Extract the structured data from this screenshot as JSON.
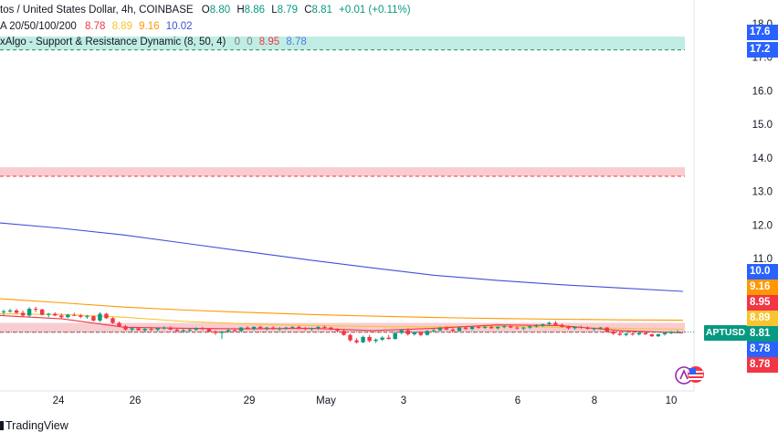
{
  "legend": {
    "symbol_line": "tos / United States Dollar, 4h, COINBASE",
    "ohlc": [
      {
        "label": "O",
        "value": "8.80"
      },
      {
        "label": "H",
        "value": "8.86"
      },
      {
        "label": "L",
        "value": "8.79"
      },
      {
        "label": "C",
        "value": "8.81"
      }
    ],
    "change": "+0.01 (+0.11%)",
    "ma_label": "A 20/50/100/200",
    "ma_values": [
      {
        "value": "8.78",
        "color": "#f23645"
      },
      {
        "value": "8.89",
        "color": "#f7c530"
      },
      {
        "value": "9.16",
        "color": "#ff9800"
      },
      {
        "value": "10.02",
        "color": "#3f51d8"
      }
    ],
    "sr_label": "xAlgo - Support & Resistance Dynamic (8, 50, 4)",
    "sr_zeros": [
      "0",
      "0"
    ],
    "sr_values": [
      {
        "value": "8.95",
        "color": "#f23645"
      },
      {
        "value": "8.78",
        "color": "#4b7bec"
      }
    ]
  },
  "symbol_tag": "APTUSD",
  "price_tags": [
    {
      "value": "17.6",
      "color": "#2962ff",
      "y_value": 17.62
    },
    {
      "value": "17.2",
      "color": "#2962ff",
      "y_value": 17.22
    },
    {
      "value": "10.0",
      "color": "#2962ff",
      "y_value": 10.02
    },
    {
      "value": "9.16",
      "color": "#ff9800",
      "y_value": 9.16
    },
    {
      "value": "8.95",
      "color": "#f23645",
      "y_value": 8.95
    },
    {
      "value": "8.89",
      "color": "#f7c530",
      "y_value": 8.89
    },
    {
      "value": "8.81",
      "color": "#089981",
      "y_value": 8.81
    },
    {
      "value": "8.78",
      "color": "#2962ff",
      "y_value": 8.78
    },
    {
      "value": "8.78",
      "color": "#f23645",
      "y_value": 8.78
    }
  ],
  "footer": {
    "brand": "TradingView"
  },
  "icons": {
    "brand_mark": "tradingview-logo-icon",
    "replay": "replay-flag-icon"
  },
  "chart_data": {
    "type": "candlestick",
    "y_axis": {
      "ticks": [
        "18.0",
        "17.0",
        "16.0",
        "15.0",
        "14.0",
        "13.0",
        "12.0",
        "11.0"
      ],
      "tick_values": [
        18,
        17,
        16,
        15,
        14,
        13,
        12,
        11
      ]
    },
    "x_axis": {
      "ticks": [
        "24",
        "26",
        "29",
        "May",
        "3",
        "6",
        "8",
        "10"
      ]
    },
    "zones": [
      {
        "type": "resistance",
        "low": 17.22,
        "high": 17.62,
        "color": "#b9ebe0"
      },
      {
        "type": "resistance",
        "low": 13.45,
        "high": 13.72,
        "color": "#f8c7cb"
      },
      {
        "type": "support",
        "low": 8.8,
        "high": 9.08,
        "color": "#f8c7cb"
      }
    ],
    "ma_series": [
      {
        "name": "MA 200",
        "color": "#3f51d8",
        "values": [
          12.06,
          11.9,
          11.7,
          11.45,
          11.2,
          10.95,
          10.72,
          10.5,
          10.35,
          10.22,
          10.12,
          10.02
        ]
      },
      {
        "name": "MA 100",
        "color": "#ff9800",
        "values": [
          9.8,
          9.68,
          9.55,
          9.46,
          9.39,
          9.33,
          9.28,
          9.24,
          9.21,
          9.19,
          9.17,
          9.16
        ]
      },
      {
        "name": "MA 50",
        "color": "#f7c530",
        "values": [
          9.35,
          9.33,
          9.25,
          9.12,
          9.05,
          9.0,
          8.97,
          8.96,
          8.98,
          8.95,
          8.92,
          8.89
        ]
      },
      {
        "name": "MA 20",
        "color": "#f23645",
        "values": [
          9.3,
          9.2,
          8.95,
          8.92,
          8.9,
          8.92,
          8.85,
          8.92,
          9.02,
          9.0,
          8.85,
          8.78
        ]
      }
    ],
    "candles": [
      [
        9.4,
        9.48,
        9.3,
        9.42
      ],
      [
        9.42,
        9.5,
        9.38,
        9.45
      ],
      [
        9.45,
        9.5,
        9.35,
        9.38
      ],
      [
        9.38,
        9.45,
        9.25,
        9.3
      ],
      [
        9.3,
        9.55,
        9.25,
        9.5
      ],
      [
        9.5,
        9.56,
        9.4,
        9.48
      ],
      [
        9.48,
        9.5,
        9.3,
        9.32
      ],
      [
        9.32,
        9.38,
        9.25,
        9.35
      ],
      [
        9.35,
        9.4,
        9.28,
        9.3
      ],
      [
        9.3,
        9.36,
        9.2,
        9.25
      ],
      [
        9.25,
        9.35,
        9.22,
        9.32
      ],
      [
        9.32,
        9.38,
        9.28,
        9.3
      ],
      [
        9.3,
        9.35,
        9.22,
        9.26
      ],
      [
        9.26,
        9.32,
        9.2,
        9.28
      ],
      [
        9.28,
        9.3,
        9.12,
        9.15
      ],
      [
        9.15,
        9.4,
        9.1,
        9.35
      ],
      [
        9.35,
        9.38,
        9.2,
        9.22
      ],
      [
        9.22,
        9.25,
        9.05,
        9.08
      ],
      [
        9.08,
        9.12,
        8.95,
        8.98
      ],
      [
        8.98,
        9.02,
        8.85,
        8.88
      ],
      [
        8.88,
        8.95,
        8.82,
        8.92
      ],
      [
        8.92,
        8.96,
        8.85,
        8.86
      ],
      [
        8.86,
        8.92,
        8.8,
        8.9
      ],
      [
        8.9,
        8.95,
        8.84,
        8.88
      ],
      [
        8.88,
        8.94,
        8.82,
        8.92
      ],
      [
        8.92,
        8.98,
        8.88,
        8.94
      ],
      [
        8.94,
        8.98,
        8.86,
        8.88
      ],
      [
        8.88,
        8.92,
        8.8,
        8.84
      ],
      [
        8.84,
        8.9,
        8.78,
        8.86
      ],
      [
        8.86,
        8.92,
        8.82,
        8.88
      ],
      [
        8.88,
        8.95,
        8.84,
        8.92
      ],
      [
        8.92,
        8.96,
        8.86,
        8.9
      ],
      [
        8.9,
        8.92,
        8.8,
        8.82
      ],
      [
        8.82,
        8.86,
        8.72,
        8.78
      ],
      [
        8.78,
        8.84,
        8.6,
        8.82
      ],
      [
        8.82,
        8.9,
        8.78,
        8.86
      ],
      [
        8.86,
        8.92,
        8.82,
        8.84
      ],
      [
        8.84,
        8.96,
        8.82,
        8.94
      ],
      [
        8.94,
        8.98,
        8.88,
        8.9
      ],
      [
        8.9,
        8.98,
        8.86,
        8.96
      ],
      [
        8.96,
        9.0,
        8.9,
        8.92
      ],
      [
        8.92,
        8.96,
        8.86,
        8.94
      ],
      [
        8.94,
        8.98,
        8.88,
        8.9
      ],
      [
        8.9,
        8.96,
        8.84,
        8.92
      ],
      [
        8.92,
        8.96,
        8.88,
        8.94
      ],
      [
        8.94,
        8.98,
        8.9,
        8.96
      ],
      [
        8.96,
        9.0,
        8.9,
        8.92
      ],
      [
        8.92,
        8.96,
        8.86,
        8.9
      ],
      [
        8.9,
        8.94,
        8.84,
        8.92
      ],
      [
        8.92,
        8.98,
        8.88,
        8.96
      ],
      [
        8.96,
        9.0,
        8.9,
        8.94
      ],
      [
        8.94,
        8.96,
        8.86,
        8.88
      ],
      [
        8.88,
        8.92,
        8.8,
        8.84
      ],
      [
        8.84,
        8.88,
        8.7,
        8.72
      ],
      [
        8.72,
        8.76,
        8.52,
        8.56
      ],
      [
        8.56,
        8.62,
        8.46,
        8.5
      ],
      [
        8.5,
        8.7,
        8.48,
        8.66
      ],
      [
        8.66,
        8.72,
        8.5,
        8.54
      ],
      [
        8.54,
        8.62,
        8.48,
        8.58
      ],
      [
        8.58,
        8.68,
        8.54,
        8.64
      ],
      [
        8.64,
        8.72,
        8.58,
        8.6
      ],
      [
        8.6,
        8.8,
        8.58,
        8.78
      ],
      [
        8.78,
        8.9,
        8.74,
        8.86
      ],
      [
        8.86,
        8.92,
        8.7,
        8.74
      ],
      [
        8.74,
        8.82,
        8.7,
        8.8
      ],
      [
        8.8,
        8.84,
        8.68,
        8.72
      ],
      [
        8.72,
        8.86,
        8.7,
        8.84
      ],
      [
        8.84,
        8.9,
        8.8,
        8.86
      ],
      [
        8.86,
        8.96,
        8.82,
        8.92
      ],
      [
        8.92,
        8.98,
        8.86,
        8.88
      ],
      [
        8.88,
        8.94,
        8.8,
        8.84
      ],
      [
        8.84,
        8.96,
        8.82,
        8.94
      ],
      [
        8.94,
        8.98,
        8.86,
        8.9
      ],
      [
        8.9,
        8.98,
        8.86,
        8.96
      ],
      [
        8.96,
        9.0,
        8.9,
        8.94
      ],
      [
        8.94,
        8.99,
        8.9,
        8.96
      ],
      [
        8.96,
        9.0,
        8.9,
        8.92
      ],
      [
        8.92,
        8.98,
        8.88,
        8.96
      ],
      [
        8.96,
        9.02,
        8.92,
        8.98
      ],
      [
        8.98,
        9.02,
        8.92,
        8.94
      ],
      [
        8.94,
        8.98,
        8.88,
        8.92
      ],
      [
        8.92,
        8.96,
        8.86,
        8.94
      ],
      [
        8.94,
        9.0,
        8.9,
        8.98
      ],
      [
        8.98,
        9.04,
        8.94,
        9.0
      ],
      [
        9.0,
        9.06,
        8.96,
        9.04
      ],
      [
        9.04,
        9.12,
        9.0,
        9.08
      ],
      [
        9.08,
        9.14,
        9.0,
        9.02
      ],
      [
        9.02,
        9.06,
        8.94,
        8.96
      ],
      [
        8.96,
        9.0,
        8.88,
        8.92
      ],
      [
        8.92,
        8.98,
        8.88,
        8.96
      ],
      [
        8.96,
        9.0,
        8.9,
        8.94
      ],
      [
        8.94,
        8.98,
        8.88,
        8.9
      ],
      [
        8.9,
        8.94,
        8.84,
        8.92
      ],
      [
        8.92,
        8.96,
        8.88,
        8.94
      ],
      [
        8.94,
        8.96,
        8.8,
        8.82
      ],
      [
        8.82,
        8.86,
        8.72,
        8.76
      ],
      [
        8.76,
        8.82,
        8.7,
        8.72
      ],
      [
        8.72,
        8.78,
        8.68,
        8.76
      ],
      [
        8.76,
        8.8,
        8.7,
        8.74
      ],
      [
        8.74,
        8.8,
        8.7,
        8.78
      ],
      [
        8.78,
        8.82,
        8.72,
        8.74
      ],
      [
        8.74,
        8.76,
        8.66,
        8.68
      ],
      [
        8.68,
        8.76,
        8.66,
        8.74
      ],
      [
        8.74,
        8.8,
        8.7,
        8.78
      ],
      [
        8.78,
        8.84,
        8.74,
        8.8
      ],
      [
        8.8,
        8.86,
        8.79,
        8.81
      ]
    ]
  }
}
